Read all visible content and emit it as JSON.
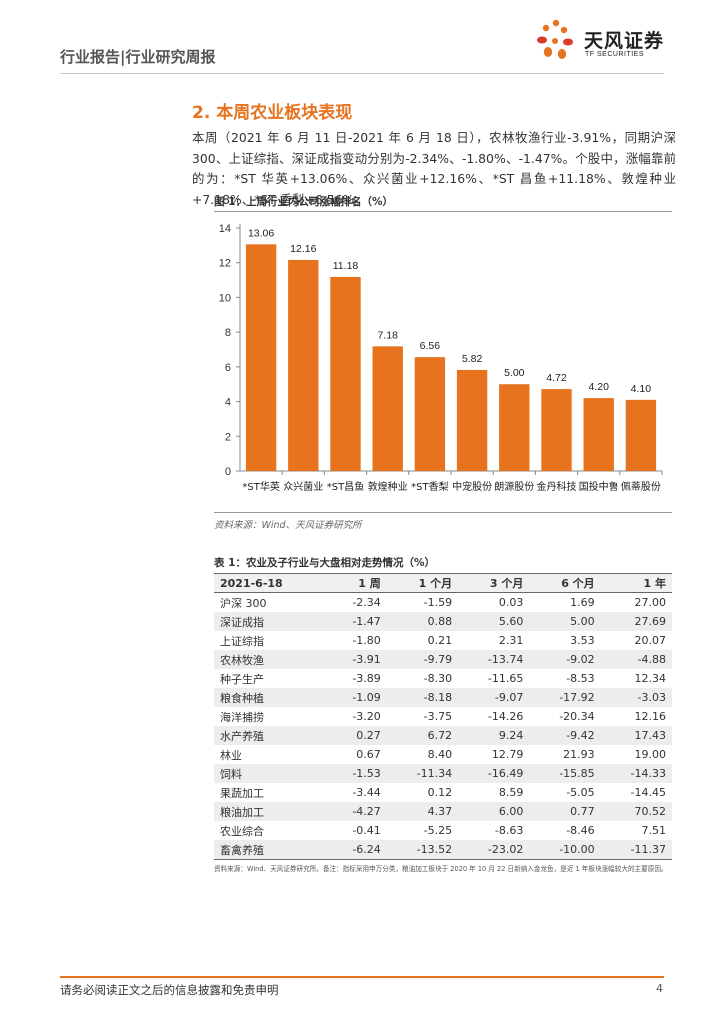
{
  "header": {
    "title": "行业报告|行业研究周报",
    "logo_text": "天风证券",
    "logo_sub": "TF SECURITIES"
  },
  "section": {
    "title": "2. 本周农业板块表现",
    "paragraph": "本周（2021 年 6 月 11 日-2021 年 6 月 18 日），农林牧渔行业-3.91%，同期沪深 300、上证综指、深证成指变动分别为-2.34%、-1.80%、-1.47%。个股中，涨幅靠前的为：*ST 华英+13.06%、众兴菌业+12.16%、*ST 昌鱼+11.18%、敦煌种业+7.18%、*ST 香梨+6.56%。"
  },
  "figure": {
    "title": "图 1：上周行业内公司涨幅排名（%）",
    "source": "资料来源：Wind、天风证券研究所"
  },
  "chart_data": {
    "type": "bar",
    "title": "图 1：上周行业内公司涨幅排名（%）",
    "categories": [
      "*ST华英",
      "众兴菌业",
      "*ST昌鱼",
      "敦煌种业",
      "*ST香梨",
      "中宠股份",
      "朗源股份",
      "金丹科技",
      "国投中鲁",
      "佩蒂股份"
    ],
    "values": [
      13.06,
      12.16,
      11.18,
      7.18,
      6.56,
      5.82,
      5.0,
      4.72,
      4.2,
      4.1
    ],
    "value_labels": [
      "13.06",
      "12.16",
      "11.18",
      "7.18",
      "6.56",
      "5.82",
      "5.00",
      "4.72",
      "4.20",
      "4.10"
    ],
    "yticks": [
      "0",
      "2",
      "4",
      "6",
      "8",
      "10",
      "12",
      "14"
    ],
    "ylim": [
      0,
      14
    ],
    "xlabel": "",
    "ylabel": "",
    "bar_color": "#e8731f"
  },
  "table": {
    "title": "表 1：农业及子行业与大盘相对走势情况（%）",
    "headers": [
      "2021-6-18",
      "1 周",
      "1 个月",
      "3 个月",
      "6 个月",
      "1 年"
    ],
    "rows": [
      [
        "沪深 300",
        "-2.34",
        "-1.59",
        "0.03",
        "1.69",
        "27.00"
      ],
      [
        "深证成指",
        "-1.47",
        "0.88",
        "5.60",
        "5.00",
        "27.69"
      ],
      [
        "上证综指",
        "-1.80",
        "0.21",
        "2.31",
        "3.53",
        "20.07"
      ],
      [
        "农林牧渔",
        "-3.91",
        "-9.79",
        "-13.74",
        "-9.02",
        "-4.88"
      ],
      [
        "种子生产",
        "-3.89",
        "-8.30",
        "-11.65",
        "-8.53",
        "12.34"
      ],
      [
        "粮食种植",
        "-1.09",
        "-8.18",
        "-9.07",
        "-17.92",
        "-3.03"
      ],
      [
        "海洋捕捞",
        "-3.20",
        "-3.75",
        "-14.26",
        "-20.34",
        "12.16"
      ],
      [
        "水产养殖",
        "0.27",
        "6.72",
        "9.24",
        "-9.42",
        "17.43"
      ],
      [
        "林业",
        "0.67",
        "8.40",
        "12.79",
        "21.93",
        "19.00"
      ],
      [
        "饲料",
        "-1.53",
        "-11.34",
        "-16.49",
        "-15.85",
        "-14.33"
      ],
      [
        "果蔬加工",
        "-3.44",
        "0.12",
        "8.59",
        "-5.05",
        "-14.45"
      ],
      [
        "粮油加工",
        "-4.27",
        "4.37",
        "6.00",
        "0.77",
        "70.52"
      ],
      [
        "农业综合",
        "-0.41",
        "-5.25",
        "-8.63",
        "-8.46",
        "7.51"
      ],
      [
        "畜禽养殖",
        "-6.24",
        "-13.52",
        "-23.02",
        "-10.00",
        "-11.37"
      ]
    ],
    "note": "资料来源：Wind、天风证券研究所。备注：指标采用申万分类，粮油加工板块于 2020 年 10 月 22 日新纳入金龙鱼，是近 1 年板块涨幅较大的主要原因。"
  },
  "footer": {
    "disclaimer": "请务必阅读正文之后的信息披露和免责申明",
    "page": "4"
  }
}
